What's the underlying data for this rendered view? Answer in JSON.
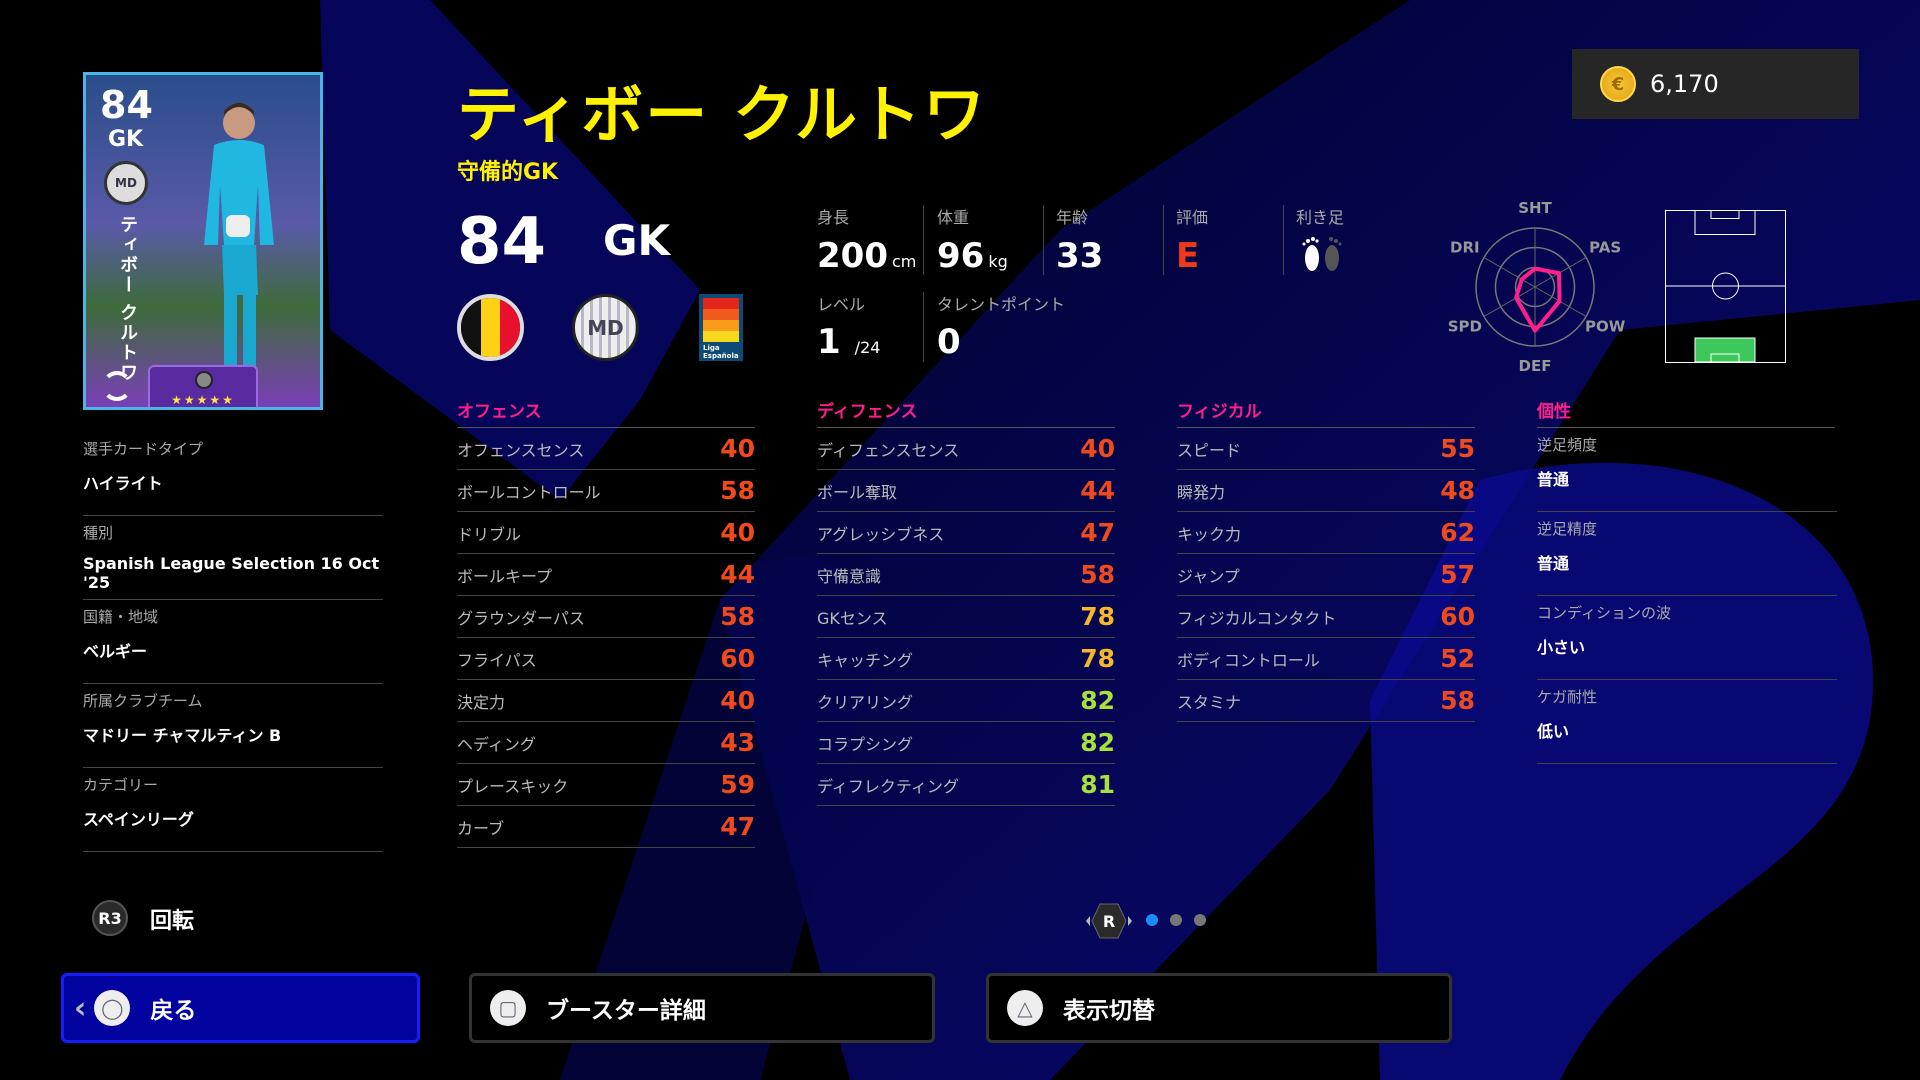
{
  "player": {
    "name": "ティボー クルトワ",
    "playstyle": "守備的GK",
    "overall": "84",
    "position": "GK",
    "card_vertical_name": "ティボー クルトワ",
    "club_abbr": "MD",
    "league_logo_text": "Liga Española",
    "stars": "★★★★★"
  },
  "coins": {
    "value": "6,170",
    "icon": "coin-icon",
    "coin_glyph": "€"
  },
  "info": {
    "height_label": "身長",
    "height": "200",
    "height_unit": "cm",
    "weight_label": "体重",
    "weight": "96",
    "weight_unit": "kg",
    "age_label": "年齢",
    "age": "33",
    "rating_label": "評価",
    "rating": "E",
    "foot_label": "利き足",
    "foot": "right",
    "level_label": "レベル",
    "level": "1",
    "level_max": "/24",
    "talent_label": "タレントポイント",
    "talent": "0"
  },
  "radar": {
    "labels": [
      "SHT",
      "PAS",
      "POW",
      "DEF",
      "SPD",
      "DRI"
    ],
    "values": [
      0.31,
      0.47,
      0.48,
      0.74,
      0.37,
      0.26
    ]
  },
  "pitch": {
    "highlight": "GK",
    "highlight_color": "#3cc85a"
  },
  "profile": [
    {
      "label": "選手カードタイプ",
      "value": "ハイライト"
    },
    {
      "label": "種別",
      "value": "Spanish League Selection 16 Oct '25"
    },
    {
      "label": "国籍・地域",
      "value": "ベルギー"
    },
    {
      "label": "所属クラブチーム",
      "value": "マドリー チャマルティン B"
    },
    {
      "label": "カテゴリー",
      "value": "スペインリーグ"
    }
  ],
  "stats": [
    {
      "title": "オフェンス",
      "rows": [
        [
          "オフェンスセンス",
          40
        ],
        [
          "ボールコントロール",
          58
        ],
        [
          "ドリブル",
          40
        ],
        [
          "ボールキープ",
          44
        ],
        [
          "グラウンダーパス",
          58
        ],
        [
          "フライパス",
          60
        ],
        [
          "決定力",
          40
        ],
        [
          "ヘディング",
          43
        ],
        [
          "プレースキック",
          59
        ],
        [
          "カーブ",
          47
        ]
      ]
    },
    {
      "title": "ディフェンス",
      "rows": [
        [
          "ディフェンスセンス",
          40
        ],
        [
          "ボール奪取",
          44
        ],
        [
          "アグレッシブネス",
          47
        ],
        [
          "守備意識",
          58
        ],
        [
          "GKセンス",
          78
        ],
        [
          "キャッチング",
          78
        ],
        [
          "クリアリング",
          82
        ],
        [
          "コラプシング",
          82
        ],
        [
          "ディフレクティング",
          81
        ]
      ]
    },
    {
      "title": "フィジカル",
      "rows": [
        [
          "スピード",
          55
        ],
        [
          "瞬発力",
          48
        ],
        [
          "キック力",
          62
        ],
        [
          "ジャンプ",
          57
        ],
        [
          "フィジカルコンタクト",
          60
        ],
        [
          "ボディコントロール",
          52
        ],
        [
          "スタミナ",
          58
        ]
      ]
    }
  ],
  "personality": {
    "title": "個性",
    "rows": [
      {
        "label": "逆足頻度",
        "value": "普通"
      },
      {
        "label": "逆足精度",
        "value": "普通"
      },
      {
        "label": "コンディションの波",
        "value": "小さい"
      },
      {
        "label": "ケガ耐性",
        "value": "低い"
      }
    ]
  },
  "controls": {
    "r3_key": "R3",
    "r3_label": "回転",
    "pager_key": "R",
    "pager_pages": 3,
    "pager_current": 1
  },
  "buttons": {
    "back": "戻る",
    "booster": "ブースター詳細",
    "toggle": "表示切替"
  },
  "colors": {
    "accent_yellow": "#fff200",
    "header_pink": "#ff1e8c",
    "stat_low": "#f04a1c",
    "stat_mid": "#f6b72b",
    "stat_high": "#a6e23a",
    "back_button": "#0303a0"
  }
}
